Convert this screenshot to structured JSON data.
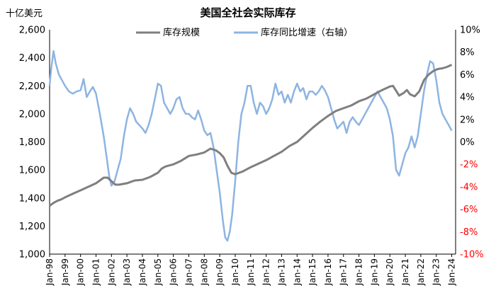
{
  "chart_data": {
    "type": "line",
    "title": "美国全社会实际库存",
    "left_unit": "十亿美元",
    "left_axis": {
      "min": 1000,
      "max": 2600,
      "step": 200,
      "ticks": [
        "1,000",
        "1,200",
        "1,400",
        "1,600",
        "1,800",
        "2,000",
        "2,200",
        "2,400",
        "2,600"
      ]
    },
    "right_axis": {
      "min": -10,
      "max": 10,
      "step": 2,
      "ticks": [
        "-10%",
        "-8%",
        "-6%",
        "-4%",
        "-2%",
        "0%",
        "2%",
        "4%",
        "6%",
        "8%",
        "10%"
      ],
      "negative_color": "#ff0000"
    },
    "x_axis": {
      "start": 1998,
      "end": 2024.25,
      "ticks": [
        "Jan-98",
        "Jan-99",
        "Jan-00",
        "Jan-01",
        "Jan-02",
        "Jan-03",
        "Jan-04",
        "Jan-05",
        "Jan-06",
        "Jan-07",
        "Jan-08",
        "Jan-09",
        "Jan-10",
        "Jan-11",
        "Jan-12",
        "Jan-13",
        "Jan-14",
        "Jan-15",
        "Jan-16",
        "Jan-17",
        "Jan-18",
        "Jan-19",
        "Jan-20",
        "Jan-21",
        "Jan-22",
        "Jan-23",
        "Jan-24"
      ]
    },
    "series": [
      {
        "name": "库存规模",
        "axis": "left",
        "color": "#7f7f7f",
        "points": [
          [
            1998.0,
            1345
          ],
          [
            1998.25,
            1365
          ],
          [
            1998.5,
            1380
          ],
          [
            1998.75,
            1390
          ],
          [
            1999.0,
            1405
          ],
          [
            1999.5,
            1430
          ],
          [
            2000.0,
            1455
          ],
          [
            2000.5,
            1480
          ],
          [
            2001.0,
            1505
          ],
          [
            2001.25,
            1525
          ],
          [
            2001.5,
            1545
          ],
          [
            2001.75,
            1545
          ],
          [
            2002.0,
            1520
          ],
          [
            2002.25,
            1495
          ],
          [
            2002.5,
            1495
          ],
          [
            2003.0,
            1505
          ],
          [
            2003.5,
            1525
          ],
          [
            2004.0,
            1530
          ],
          [
            2004.5,
            1550
          ],
          [
            2005.0,
            1580
          ],
          [
            2005.25,
            1610
          ],
          [
            2005.5,
            1625
          ],
          [
            2006.0,
            1640
          ],
          [
            2006.5,
            1665
          ],
          [
            2007.0,
            1700
          ],
          [
            2007.5,
            1710
          ],
          [
            2008.0,
            1725
          ],
          [
            2008.4,
            1752
          ],
          [
            2008.75,
            1740
          ],
          [
            2009.0,
            1720
          ],
          [
            2009.25,
            1690
          ],
          [
            2009.5,
            1630
          ],
          [
            2009.75,
            1580
          ],
          [
            2010.0,
            1570
          ],
          [
            2010.5,
            1590
          ],
          [
            2011.0,
            1620
          ],
          [
            2011.5,
            1645
          ],
          [
            2012.0,
            1670
          ],
          [
            2012.5,
            1700
          ],
          [
            2013.0,
            1730
          ],
          [
            2013.5,
            1770
          ],
          [
            2014.0,
            1800
          ],
          [
            2014.5,
            1850
          ],
          [
            2015.0,
            1900
          ],
          [
            2015.5,
            1945
          ],
          [
            2016.0,
            1985
          ],
          [
            2016.5,
            2020
          ],
          [
            2017.0,
            2040
          ],
          [
            2017.5,
            2060
          ],
          [
            2018.0,
            2090
          ],
          [
            2018.5,
            2110
          ],
          [
            2019.0,
            2140
          ],
          [
            2019.5,
            2170
          ],
          [
            2020.0,
            2195
          ],
          [
            2020.2,
            2200
          ],
          [
            2020.4,
            2165
          ],
          [
            2020.6,
            2130
          ],
          [
            2020.9,
            2150
          ],
          [
            2021.1,
            2170
          ],
          [
            2021.3,
            2140
          ],
          [
            2021.6,
            2125
          ],
          [
            2021.9,
            2160
          ],
          [
            2022.2,
            2240
          ],
          [
            2022.5,
            2280
          ],
          [
            2022.8,
            2305
          ],
          [
            2023.1,
            2320
          ],
          [
            2023.4,
            2325
          ],
          [
            2023.7,
            2335
          ],
          [
            2024.0,
            2350
          ]
        ]
      },
      {
        "name": "库存同比增速（右轴）",
        "axis": "right",
        "color": "#8db4e2",
        "points": [
          [
            1998.0,
            5.0
          ],
          [
            1998.1,
            6.5
          ],
          [
            1998.25,
            8.1
          ],
          [
            1998.4,
            7.0
          ],
          [
            1998.6,
            6.0
          ],
          [
            1998.8,
            5.5
          ],
          [
            1999.0,
            5.0
          ],
          [
            1999.25,
            4.5
          ],
          [
            1999.5,
            4.3
          ],
          [
            1999.75,
            4.5
          ],
          [
            2000.0,
            4.6
          ],
          [
            2000.2,
            5.6
          ],
          [
            2000.4,
            4.0
          ],
          [
            2000.6,
            4.5
          ],
          [
            2000.8,
            4.9
          ],
          [
            2001.0,
            4.3
          ],
          [
            2001.25,
            2.5
          ],
          [
            2001.5,
            0.5
          ],
          [
            2001.7,
            -1.5
          ],
          [
            2001.85,
            -3.0
          ],
          [
            2002.0,
            -3.9
          ],
          [
            2002.2,
            -3.5
          ],
          [
            2002.4,
            -2.5
          ],
          [
            2002.6,
            -1.5
          ],
          [
            2002.8,
            0.5
          ],
          [
            2003.0,
            2.0
          ],
          [
            2003.2,
            3.0
          ],
          [
            2003.4,
            2.5
          ],
          [
            2003.6,
            1.8
          ],
          [
            2003.8,
            1.5
          ],
          [
            2004.0,
            1.2
          ],
          [
            2004.2,
            0.8
          ],
          [
            2004.4,
            1.5
          ],
          [
            2004.6,
            2.5
          ],
          [
            2004.8,
            3.8
          ],
          [
            2005.0,
            5.2
          ],
          [
            2005.2,
            5.0
          ],
          [
            2005.4,
            3.5
          ],
          [
            2005.6,
            3.0
          ],
          [
            2005.8,
            2.5
          ],
          [
            2006.0,
            3.0
          ],
          [
            2006.2,
            3.8
          ],
          [
            2006.4,
            4.0
          ],
          [
            2006.6,
            3.0
          ],
          [
            2006.8,
            2.5
          ],
          [
            2007.0,
            2.5
          ],
          [
            2007.2,
            2.2
          ],
          [
            2007.4,
            2.0
          ],
          [
            2007.6,
            2.8
          ],
          [
            2007.8,
            2.0
          ],
          [
            2008.0,
            1.0
          ],
          [
            2008.2,
            0.6
          ],
          [
            2008.4,
            0.8
          ],
          [
            2008.6,
            -0.5
          ],
          [
            2008.8,
            -2.5
          ],
          [
            2009.0,
            -4.5
          ],
          [
            2009.2,
            -7.0
          ],
          [
            2009.35,
            -8.5
          ],
          [
            2009.5,
            -8.8
          ],
          [
            2009.65,
            -8.0
          ],
          [
            2009.8,
            -6.5
          ],
          [
            2010.0,
            -3.5
          ],
          [
            2010.2,
            0.0
          ],
          [
            2010.4,
            2.5
          ],
          [
            2010.6,
            3.5
          ],
          [
            2010.8,
            5.0
          ],
          [
            2011.0,
            5.0
          ],
          [
            2011.2,
            3.5
          ],
          [
            2011.4,
            2.5
          ],
          [
            2011.6,
            3.5
          ],
          [
            2011.8,
            3.2
          ],
          [
            2012.0,
            2.5
          ],
          [
            2012.2,
            3.0
          ],
          [
            2012.4,
            3.8
          ],
          [
            2012.6,
            5.2
          ],
          [
            2012.8,
            4.2
          ],
          [
            2013.0,
            4.5
          ],
          [
            2013.2,
            3.5
          ],
          [
            2013.4,
            4.2
          ],
          [
            2013.6,
            3.5
          ],
          [
            2013.8,
            4.5
          ],
          [
            2014.0,
            5.2
          ],
          [
            2014.2,
            4.5
          ],
          [
            2014.4,
            4.8
          ],
          [
            2014.6,
            3.8
          ],
          [
            2014.8,
            4.5
          ],
          [
            2015.0,
            4.5
          ],
          [
            2015.2,
            4.2
          ],
          [
            2015.4,
            4.5
          ],
          [
            2015.6,
            5.0
          ],
          [
            2015.8,
            4.6
          ],
          [
            2016.0,
            4.0
          ],
          [
            2016.2,
            3.0
          ],
          [
            2016.4,
            2.0
          ],
          [
            2016.6,
            1.2
          ],
          [
            2016.8,
            1.5
          ],
          [
            2017.0,
            1.8
          ],
          [
            2017.2,
            0.8
          ],
          [
            2017.4,
            1.8
          ],
          [
            2017.6,
            2.2
          ],
          [
            2017.8,
            1.8
          ],
          [
            2018.0,
            1.5
          ],
          [
            2018.2,
            2.0
          ],
          [
            2018.4,
            2.5
          ],
          [
            2018.6,
            3.0
          ],
          [
            2018.8,
            3.5
          ],
          [
            2019.0,
            4.0
          ],
          [
            2019.2,
            4.5
          ],
          [
            2019.4,
            4.0
          ],
          [
            2019.6,
            3.5
          ],
          [
            2019.8,
            3.0
          ],
          [
            2020.0,
            2.0
          ],
          [
            2020.2,
            0.5
          ],
          [
            2020.4,
            -2.5
          ],
          [
            2020.6,
            -3.0
          ],
          [
            2020.8,
            -2.0
          ],
          [
            2021.0,
            -1.0
          ],
          [
            2021.2,
            -0.5
          ],
          [
            2021.4,
            0.5
          ],
          [
            2021.6,
            -0.5
          ],
          [
            2021.8,
            0.5
          ],
          [
            2022.0,
            2.5
          ],
          [
            2022.2,
            4.5
          ],
          [
            2022.4,
            6.0
          ],
          [
            2022.6,
            7.2
          ],
          [
            2022.8,
            7.0
          ],
          [
            2023.0,
            5.5
          ],
          [
            2023.2,
            3.5
          ],
          [
            2023.4,
            2.5
          ],
          [
            2023.6,
            2.0
          ],
          [
            2023.8,
            1.5
          ],
          [
            2024.0,
            1.0
          ]
        ]
      }
    ]
  }
}
